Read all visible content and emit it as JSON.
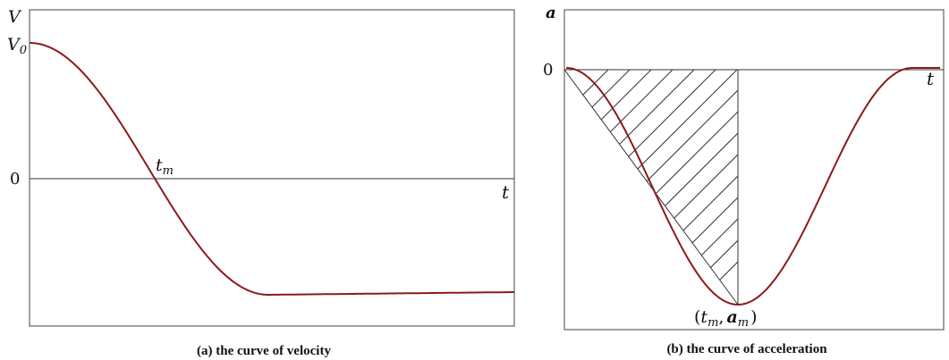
{
  "panels": [
    {
      "caption": "(a) the curve of velocity",
      "y_axis_label": "V",
      "y_start_label": "V",
      "y_start_sub": "0",
      "zero_label": "0",
      "x_axis_label": "t",
      "point_label": "t",
      "point_label_sub": "m"
    },
    {
      "caption": "(b) the curve of acceleration",
      "y_axis_label": "a",
      "zero_label": "0",
      "x_axis_label": "t",
      "point_label_open": "(",
      "point_label_t": "t",
      "point_label_t_sub": "m",
      "point_label_comma": ",",
      "point_label_a": "a",
      "point_label_a_sub": "m",
      "point_label_close": ")"
    }
  ],
  "colors": {
    "curve": "#8b1a1a",
    "axis": "#333333",
    "frame": "#444444",
    "hatch": "#333333"
  }
}
